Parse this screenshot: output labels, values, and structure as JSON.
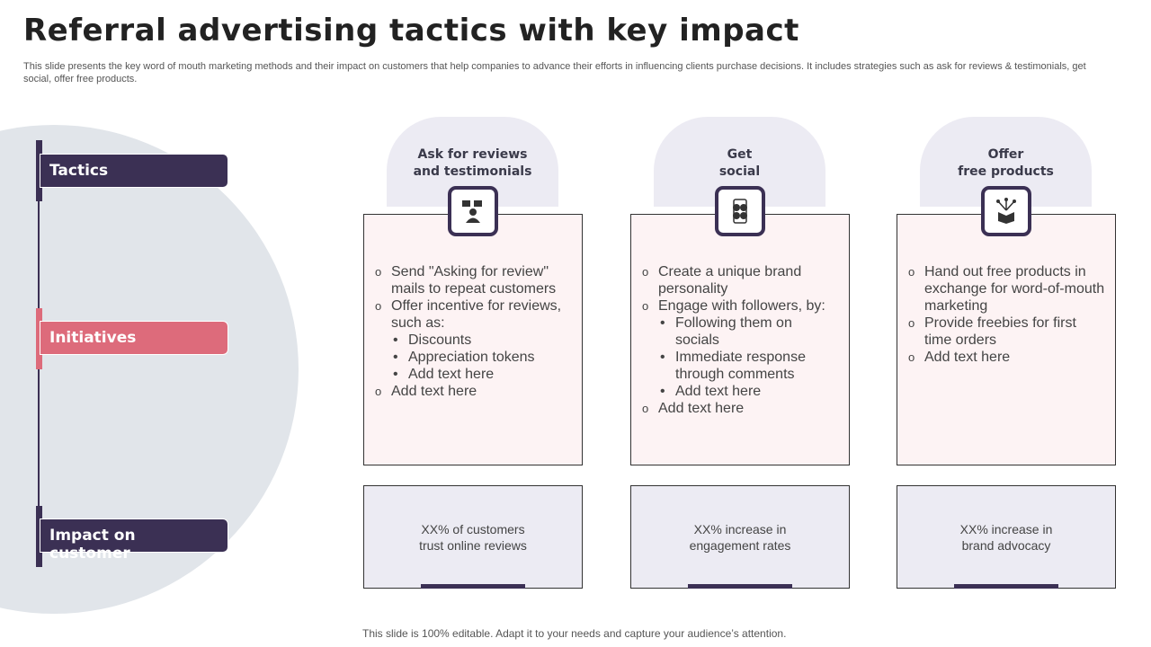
{
  "title": "Referral advertising tactics with key impact",
  "subtitle": "This slide presents the key word of mouth marketing methods and their impact on customers that help companies to advance their efforts in influencing clients purchase decisions. It includes strategies such as ask for reviews & testimonials, get social, offer free products.",
  "rows": {
    "tactics": "Tactics",
    "initiatives": "Initiatives",
    "impact": "Impact on customer"
  },
  "colors": {
    "dark": "#3b3054",
    "pink": "#dd6b7b",
    "lavender": "#ecebf3",
    "card_bg": "#fdf3f4",
    "circle": "#e1e5ea"
  },
  "columns": [
    {
      "tactic_line1": "Ask for reviews",
      "tactic_line2": "and testimonials",
      "icon": "person-reviews-icon",
      "items": [
        {
          "t": "Send \"Asking for review\" mails to repeat customers"
        },
        {
          "t": "Offer incentive for reviews, such as:"
        },
        {
          "t": "Discounts",
          "sub": true
        },
        {
          "t": "Appreciation tokens",
          "sub": true
        },
        {
          "t": "Add text here",
          "sub": true
        },
        {
          "t": "Add text here"
        }
      ],
      "impact_line1": "XX% of customers",
      "impact_line2": "trust online reviews"
    },
    {
      "tactic_line1": "Get",
      "tactic_line2": "social",
      "icon": "social-phone-icon",
      "items": [
        {
          "t": "Create a unique brand personality"
        },
        {
          "t": "Engage with followers, by:"
        },
        {
          "t": "Following them on socials",
          "sub": true
        },
        {
          "t": "Immediate response through comments",
          "sub": true
        },
        {
          "t": "Add text here",
          "sub": true
        },
        {
          "t": "Add text here"
        }
      ],
      "impact_line1": "XX% increase in",
      "impact_line2": "engagement rates"
    },
    {
      "tactic_line1": "Offer",
      "tactic_line2": "free products",
      "icon": "gift-box-icon",
      "items": [
        {
          "t": "Hand out free products in exchange for word-of-mouth marketing"
        },
        {
          "t": "Provide freebies for first time orders"
        },
        {
          "t": "Add text here"
        }
      ],
      "impact_line1": "XX% increase in",
      "impact_line2": "brand advocacy"
    }
  ],
  "footer": "This slide is 100% editable. Adapt it to your needs and capture your audience’s attention."
}
